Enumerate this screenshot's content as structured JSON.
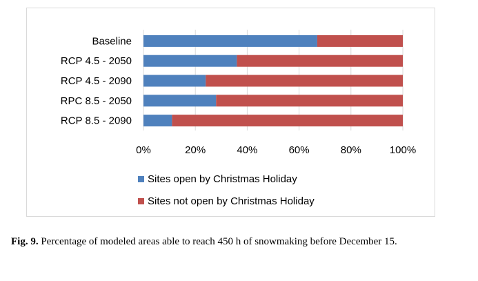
{
  "chart_data": {
    "type": "bar",
    "orientation": "horizontal",
    "stacked": "percent",
    "categories": [
      "Baseline",
      "RCP 4.5 - 2050",
      "RCP 4.5 - 2090",
      "RPC 8.5 - 2050",
      "RCP 8.5 - 2090"
    ],
    "series": [
      {
        "name": "Sites open by Christmas Holiday",
        "values": [
          67,
          36,
          24,
          28,
          11
        ],
        "color": "#4f81bd"
      },
      {
        "name": "Sites not open by Christmas Holiday",
        "values": [
          33,
          64,
          76,
          72,
          89
        ],
        "color": "#c0504d"
      }
    ],
    "xlim": [
      0,
      100
    ],
    "xticks": [
      "0%",
      "20%",
      "40%",
      "60%",
      "80%",
      "100%"
    ],
    "grid": true,
    "legend_position": "bottom"
  },
  "caption": {
    "label": "Fig. 9.",
    "text": " Percentage of modeled areas able to reach 450 h of snowmaking before December 15."
  }
}
